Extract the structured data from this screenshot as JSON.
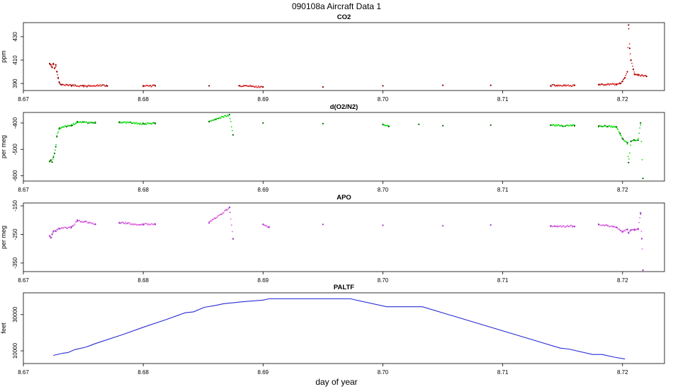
{
  "figure": {
    "title": "090108a   Aircraft Data 1",
    "xlabel": "day of year"
  },
  "chart_data": [
    {
      "type": "scatter",
      "title": "CO2",
      "ylabel": "ppm",
      "xlim": [
        8.67,
        8.7235
      ],
      "ylim": [
        384,
        442
      ],
      "xticks": [
        8.67,
        8.68,
        8.69,
        8.7,
        8.71,
        8.72
      ],
      "xtick_labels": [
        "8.67",
        "8.68",
        "8.69",
        "8.70",
        "8.71",
        "8.72"
      ],
      "yticks": [
        390,
        410,
        430
      ],
      "ytick_labels": [
        "390",
        "410",
        "430"
      ],
      "series": [
        {
          "color": "#e02020",
          "color_secondary": "#8b0000",
          "points": [
            [
              8.6722,
              407
            ],
            [
              8.6723,
              406
            ],
            [
              8.6724,
              404
            ],
            [
              8.6725,
              407
            ],
            [
              8.6726,
              403
            ],
            [
              8.6727,
              406
            ],
            [
              8.6728,
              400
            ],
            [
              8.6729,
              395
            ],
            [
              8.673,
              391
            ],
            [
              8.6732,
              389
            ],
            [
              8.674,
              388
            ],
            [
              8.675,
              388
            ],
            [
              8.677,
              388
            ],
            [
              8.68,
              388
            ],
            [
              8.681,
              388
            ],
            [
              8.6855,
              388
            ],
            [
              8.688,
              388
            ],
            [
              8.69,
              387
            ],
            [
              8.695,
              387
            ],
            [
              8.7,
              388
            ],
            [
              8.705,
              388.5
            ],
            [
              8.709,
              388.5
            ],
            [
              8.714,
              388
            ],
            [
              8.716,
              388.5
            ],
            [
              8.718,
              389
            ],
            [
              8.7195,
              389
            ],
            [
              8.7198,
              390
            ],
            [
              8.72,
              392
            ],
            [
              8.7202,
              395
            ],
            [
              8.7204,
              400
            ],
            [
              8.7205,
              440
            ],
            [
              8.7206,
              420
            ],
            [
              8.7207,
              410
            ],
            [
              8.7209,
              402
            ],
            [
              8.721,
              398
            ],
            [
              8.7213,
              397
            ],
            [
              8.722,
              396
            ]
          ]
        }
      ]
    },
    {
      "type": "scatter",
      "title": "d(O2/N2)",
      "ylabel": "per meg",
      "xlim": [
        8.67,
        8.7235
      ],
      "ylim": [
        -620,
        -360
      ],
      "xticks": [
        8.67,
        8.68,
        8.69,
        8.7,
        8.71,
        8.72
      ],
      "xtick_labels": [
        "8.67",
        "8.68",
        "8.69",
        "8.70",
        "8.71",
        "8.72"
      ],
      "yticks": [
        -600,
        -500,
        -400
      ],
      "ytick_labels": [
        "-600",
        "-500",
        "-400"
      ],
      "series": [
        {
          "color": "#00e000",
          "color_secondary": "#006400",
          "points": [
            [
              8.6722,
              -545
            ],
            [
              8.6723,
              -540
            ],
            [
              8.6724,
              -548
            ],
            [
              8.6725,
              -530
            ],
            [
              8.6726,
              -515
            ],
            [
              8.6727,
              -490
            ],
            [
              8.6728,
              -450
            ],
            [
              8.673,
              -420
            ],
            [
              8.674,
              -410
            ],
            [
              8.6745,
              -395
            ],
            [
              8.676,
              -400
            ],
            [
              8.678,
              -398
            ],
            [
              8.68,
              -402
            ],
            [
              8.681,
              -402
            ],
            [
              8.6855,
              -395
            ],
            [
              8.6872,
              -368
            ],
            [
              8.6875,
              -445
            ],
            [
              8.69,
              -400
            ],
            [
              8.695,
              -402
            ],
            [
              8.7,
              -405
            ],
            [
              8.7005,
              -413
            ],
            [
              8.703,
              -405
            ],
            [
              8.705,
              -410
            ],
            [
              8.709,
              -408
            ],
            [
              8.714,
              -408
            ],
            [
              8.716,
              -410
            ],
            [
              8.718,
              -412
            ],
            [
              8.7195,
              -415
            ],
            [
              8.7198,
              -440
            ],
            [
              8.72,
              -460
            ],
            [
              8.7204,
              -475
            ],
            [
              8.7205,
              -550
            ],
            [
              8.7207,
              -470
            ],
            [
              8.721,
              -465
            ],
            [
              8.7213,
              -465
            ],
            [
              8.7215,
              -400
            ],
            [
              8.7217,
              -610
            ]
          ]
        }
      ]
    },
    {
      "type": "scatter",
      "title": "APO",
      "ylabel": "per meg",
      "xlim": [
        8.67,
        8.7235
      ],
      "ylim": [
        -380,
        -140
      ],
      "xticks": [
        8.67,
        8.68,
        8.69,
        8.7,
        8.71,
        8.72
      ],
      "xtick_labels": [
        "8.67",
        "8.68",
        "8.69",
        "8.70",
        "8.71",
        "8.72"
      ],
      "yticks": [
        -350,
        -250,
        -150
      ],
      "ytick_labels": [
        "-350",
        "-250",
        "-150"
      ],
      "series": [
        {
          "color": "#e060e0",
          "color_secondary": "#9932cc",
          "points": [
            [
              8.6722,
              -255
            ],
            [
              8.6723,
              -262
            ],
            [
              8.6724,
              -250
            ],
            [
              8.6725,
              -240
            ],
            [
              8.6727,
              -238
            ],
            [
              8.673,
              -230
            ],
            [
              8.674,
              -225
            ],
            [
              8.6745,
              -200
            ],
            [
              8.676,
              -215
            ],
            [
              8.678,
              -210
            ],
            [
              8.68,
              -215
            ],
            [
              8.681,
              -215
            ],
            [
              8.6855,
              -210
            ],
            [
              8.6872,
              -155
            ],
            [
              8.6875,
              -265
            ],
            [
              8.69,
              -215
            ],
            [
              8.6905,
              -225
            ],
            [
              8.695,
              -215
            ],
            [
              8.7,
              -218
            ],
            [
              8.705,
              -220
            ],
            [
              8.709,
              -217
            ],
            [
              8.714,
              -220
            ],
            [
              8.716,
              -222
            ],
            [
              8.718,
              -215
            ],
            [
              8.7195,
              -225
            ],
            [
              8.72,
              -240
            ],
            [
              8.7204,
              -232
            ],
            [
              8.7205,
              -245
            ],
            [
              8.7207,
              -235
            ],
            [
              8.721,
              -235
            ],
            [
              8.7213,
              -232
            ],
            [
              8.7215,
              -175
            ],
            [
              8.7216,
              -265
            ],
            [
              8.7217,
              -375
            ]
          ]
        }
      ]
    },
    {
      "type": "line",
      "title": "PALTF",
      "ylabel": "feet",
      "xlim": [
        8.67,
        8.7235
      ],
      "ylim": [
        3000,
        42000
      ],
      "xticks": [
        8.67,
        8.68,
        8.69,
        8.7,
        8.71,
        8.72
      ],
      "xtick_labels": [
        "8.67",
        "8.68",
        "8.69",
        "8.70",
        "8.71",
        "8.72"
      ],
      "yticks": [
        10000,
        30000
      ],
      "ytick_labels": [
        "10000",
        "30000"
      ],
      "series": [
        {
          "color": "#2b2bd6",
          "points": [
            [
              8.6725,
              7500
            ],
            [
              8.6733,
              8700
            ],
            [
              8.6737,
              9000
            ],
            [
              8.6743,
              10700
            ],
            [
              8.6752,
              12000
            ],
            [
              8.676,
              14000
            ],
            [
              8.6783,
              19000
            ],
            [
              8.68,
              23000
            ],
            [
              8.6818,
              27000
            ],
            [
              8.6835,
              31000
            ],
            [
              8.6842,
              31500
            ],
            [
              8.6851,
              34000
            ],
            [
              8.686,
              35000
            ],
            [
              8.6867,
              36000
            ],
            [
              8.6882,
              37000
            ],
            [
              8.69,
              38000
            ],
            [
              8.6905,
              38700
            ],
            [
              8.6973,
              38700
            ],
            [
              8.7003,
              34300
            ],
            [
              8.7033,
              34300
            ],
            [
              8.7148,
              11500
            ],
            [
              8.7155,
              11000
            ],
            [
              8.7175,
              8000
            ],
            [
              8.7183,
              8000
            ],
            [
              8.7193,
              6500
            ],
            [
              8.7202,
              5500
            ]
          ]
        }
      ]
    }
  ]
}
